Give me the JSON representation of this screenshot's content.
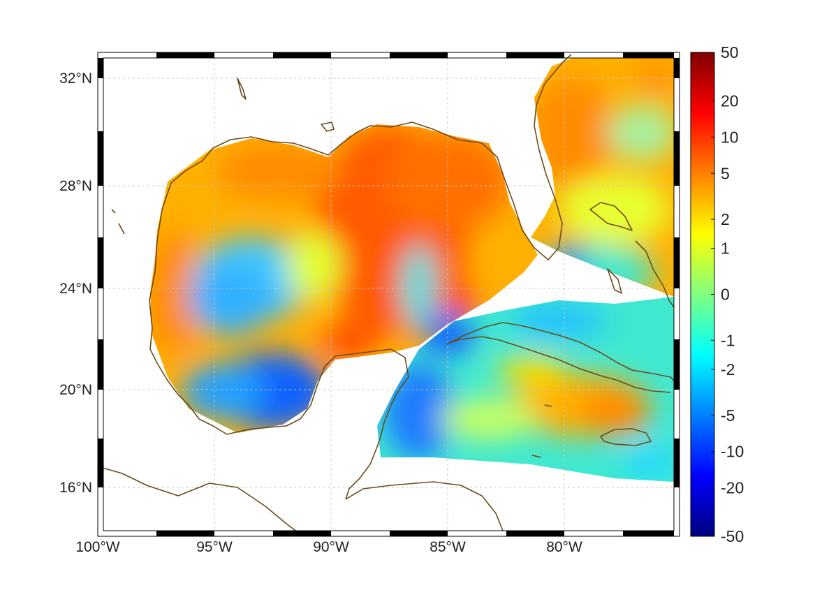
{
  "map": {
    "projection": "mercator",
    "lon_range": [
      -100,
      -75
    ],
    "lat_range": [
      14.3,
      33
    ],
    "x_ticks": [
      {
        "lon": -100,
        "label": "100°W"
      },
      {
        "lon": -95,
        "label": "95°W"
      },
      {
        "lon": -90,
        "label": "90°W"
      },
      {
        "lon": -85,
        "label": "85°W"
      },
      {
        "lon": -80,
        "label": "80°W"
      }
    ],
    "y_ticks": [
      {
        "lat": 32,
        "label": "32°N"
      },
      {
        "lat": 28,
        "label": "28°N"
      },
      {
        "lat": 24,
        "label": "24°N"
      },
      {
        "lat": 20,
        "label": "20°N"
      },
      {
        "lat": 16,
        "label": "16°N"
      }
    ],
    "grid": true,
    "coastline_color": "#6b4a1a",
    "field_colormap": "jet"
  },
  "colorbar": {
    "placement": "right",
    "scale": "symmetric-nonlinear",
    "labels": [
      "50",
      "20",
      "10",
      "5",
      "2",
      "1",
      "0",
      "-1",
      "-2",
      "-5",
      "-10",
      "-20",
      "-50"
    ],
    "colors": [
      "#800000",
      "#ff0000",
      "#ff8000",
      "#ffff00",
      "#80ff80",
      "#00ffff",
      "#0080ff",
      "#0000ff",
      "#000080"
    ]
  }
}
